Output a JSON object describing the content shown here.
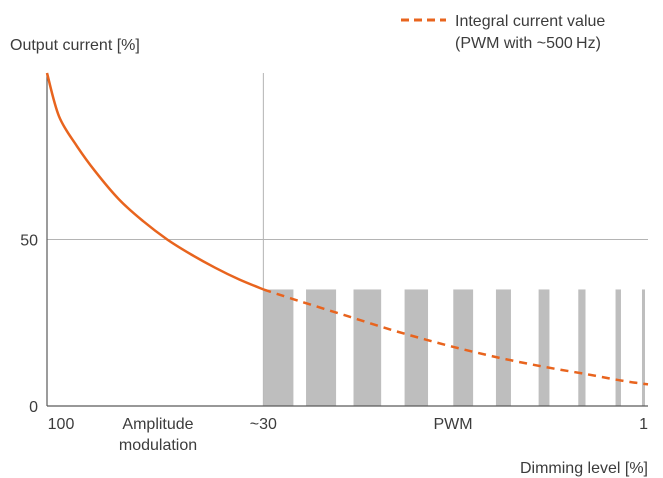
{
  "chart_data": {
    "type": "line",
    "ylabel": "Output current [%]",
    "xlabel": "Dimming level [%]",
    "legend": {
      "position": "top-right",
      "line1": "Integral current value",
      "line2": "(PWM with ~500 Hz)"
    },
    "y_ticks": [
      {
        "value": 0,
        "label": "0"
      },
      {
        "value": 50,
        "label": "50"
      }
    ],
    "x_ticks": [
      {
        "label": "100"
      },
      {
        "label": "~30"
      },
      {
        "label": "1"
      }
    ],
    "region_labels": {
      "amplitude_line1": "Amplitude",
      "amplitude_line2": "modulation",
      "pwm": "PWM"
    },
    "ylim": [
      0,
      100
    ],
    "xlim": [
      0,
      1
    ],
    "divider_x": 0.36,
    "curve_solid": [
      [
        0.0,
        100
      ],
      [
        0.02,
        87
      ],
      [
        0.05,
        78
      ],
      [
        0.08,
        70.5
      ],
      [
        0.12,
        62
      ],
      [
        0.16,
        55.5
      ],
      [
        0.2,
        50
      ],
      [
        0.24,
        45.5
      ],
      [
        0.28,
        41.5
      ],
      [
        0.32,
        38
      ],
      [
        0.36,
        35
      ]
    ],
    "curve_dashed": [
      [
        0.36,
        35
      ],
      [
        0.42,
        31.5
      ],
      [
        0.5,
        27
      ],
      [
        0.58,
        22.5
      ],
      [
        0.66,
        18.5
      ],
      [
        0.74,
        15
      ],
      [
        0.82,
        12
      ],
      [
        0.9,
        9.5
      ],
      [
        0.96,
        7.5
      ],
      [
        1.0,
        6.5
      ]
    ],
    "pwm_bar_height": 35,
    "pwm_bars": [
      [
        0.36,
        0.41
      ],
      [
        0.431,
        0.481
      ],
      [
        0.51,
        0.556
      ],
      [
        0.595,
        0.634
      ],
      [
        0.676,
        0.709
      ],
      [
        0.747,
        0.772
      ],
      [
        0.818,
        0.836
      ],
      [
        0.884,
        0.896
      ],
      [
        0.946,
        0.955
      ],
      [
        0.99,
        0.995
      ]
    ],
    "colors": {
      "curve": "#e8641e",
      "bars": "#bebebe",
      "grid": "#b4b4b4",
      "axis": "#5a5a5a"
    }
  }
}
